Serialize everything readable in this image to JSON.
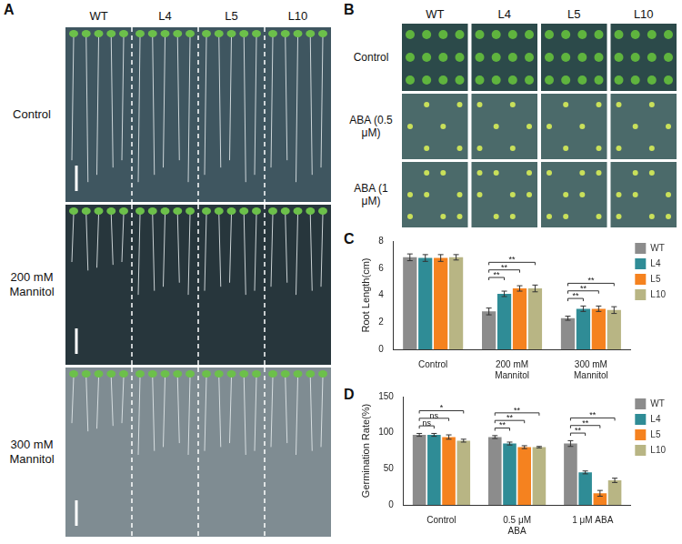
{
  "images": [
    {
      "panel_label": "A",
      "columns": [
        "WT",
        "L4",
        "L5",
        "L10"
      ],
      "rows": [
        "Control",
        "200 mM Mannitol",
        "300 mM Mannitol"
      ]
    },
    {
      "panel_label": "B",
      "columns": [
        "WT",
        "L4",
        "L5",
        "L10"
      ],
      "rows": [
        "Control",
        "ABA (0.5 μM)",
        "ABA (1 μM)"
      ]
    }
  ],
  "chart_data": [
    {
      "panel_label": "C",
      "type": "bar",
      "y_label": "Root Length(cm)",
      "categories": [
        "Control",
        "200 mM Mannitol",
        "300 mM Mannitol"
      ],
      "series": [
        {
          "name": "WT",
          "color": "#8c8c8c",
          "values": [
            6.8,
            2.8,
            2.3
          ],
          "errors": [
            0.25,
            0.25,
            0.15
          ]
        },
        {
          "name": "L4",
          "color": "#2f8c96",
          "values": [
            6.75,
            4.1,
            3.0
          ],
          "errors": [
            0.25,
            0.2,
            0.2
          ]
        },
        {
          "name": "L5",
          "color": "#f5821f",
          "values": [
            6.75,
            4.5,
            3.0
          ],
          "errors": [
            0.25,
            0.2,
            0.2
          ]
        },
        {
          "name": "L10",
          "color": "#b8b584",
          "values": [
            6.8,
            4.5,
            2.9
          ],
          "errors": [
            0.2,
            0.25,
            0.25
          ]
        }
      ],
      "ylim": [
        0,
        8
      ],
      "yticks": [
        0,
        2,
        4,
        6,
        8
      ],
      "grid": false,
      "legend": "right",
      "annotations": [
        {
          "category": "200 mM Mannitol",
          "from": "WT",
          "to": "L4",
          "label": "**"
        },
        {
          "category": "200 mM Mannitol",
          "from": "WT",
          "to": "L5",
          "label": "**"
        },
        {
          "category": "200 mM Mannitol",
          "from": "WT",
          "to": "L10",
          "label": "**"
        },
        {
          "category": "300 mM Mannitol",
          "from": "WT",
          "to": "L4",
          "label": "**"
        },
        {
          "category": "300 mM Mannitol",
          "from": "WT",
          "to": "L5",
          "label": "**"
        },
        {
          "category": "300 mM Mannitol",
          "from": "WT",
          "to": "L10",
          "label": "**"
        }
      ]
    },
    {
      "panel_label": "D",
      "type": "bar",
      "y_label": "Germination Rate(%)",
      "categories": [
        "Control",
        "0.5 μM ABA",
        "1 μM ABA"
      ],
      "series": [
        {
          "name": "WT",
          "color": "#8c8c8c",
          "values": [
            97,
            94,
            85
          ],
          "errors": [
            2,
            2,
            4
          ]
        },
        {
          "name": "L4",
          "color": "#2f8c96",
          "values": [
            97,
            85,
            45
          ],
          "errors": [
            2,
            2,
            2
          ]
        },
        {
          "name": "L5",
          "color": "#f5821f",
          "values": [
            94,
            80,
            16
          ],
          "errors": [
            3,
            2,
            4
          ]
        },
        {
          "name": "L10",
          "color": "#b8b584",
          "values": [
            89,
            80,
            34
          ],
          "errors": [
            2,
            1,
            3
          ]
        }
      ],
      "ylim": [
        0,
        150
      ],
      "yticks": [
        0,
        50,
        100,
        150
      ],
      "grid": false,
      "legend": "right",
      "annotations": [
        {
          "category": "Control",
          "from": "WT",
          "to": "L4",
          "label": "ns"
        },
        {
          "category": "Control",
          "from": "WT",
          "to": "L5",
          "label": "ns"
        },
        {
          "category": "Control",
          "from": "WT",
          "to": "L10",
          "label": "*"
        },
        {
          "category": "0.5 μM ABA",
          "from": "WT",
          "to": "L4",
          "label": "**"
        },
        {
          "category": "0.5 μM ABA",
          "from": "WT",
          "to": "L5",
          "label": "**"
        },
        {
          "category": "0.5 μM ABA",
          "from": "WT",
          "to": "L10",
          "label": "**"
        },
        {
          "category": "1 μM ABA",
          "from": "WT",
          "to": "L4",
          "label": "**"
        },
        {
          "category": "1 μM ABA",
          "from": "WT",
          "to": "L5",
          "label": "**"
        },
        {
          "category": "1 μM ABA",
          "from": "WT",
          "to": "L10",
          "label": "**"
        }
      ]
    }
  ]
}
